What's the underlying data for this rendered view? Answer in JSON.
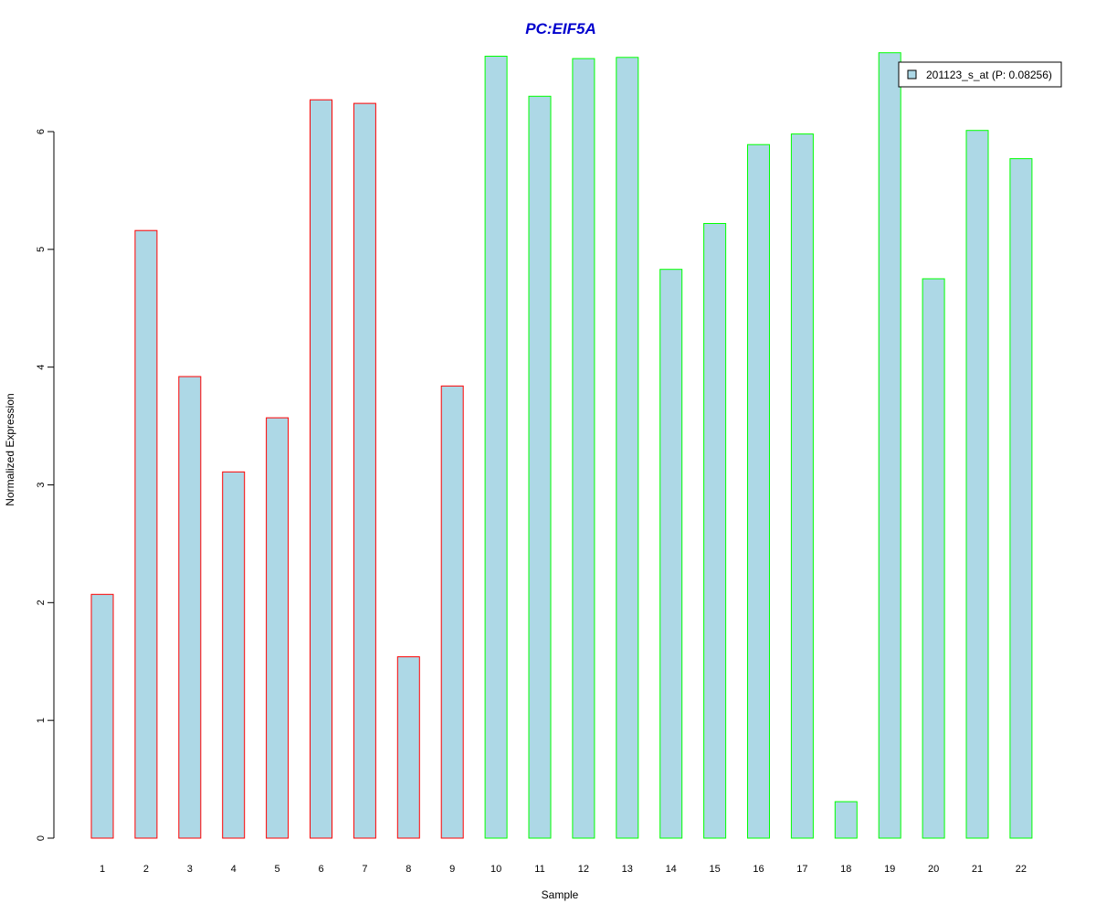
{
  "chart_data": {
    "type": "bar",
    "title": "PC:EIF5A",
    "xlabel": "Sample",
    "ylabel": "Normalized Expression",
    "categories": [
      "1",
      "2",
      "3",
      "4",
      "5",
      "6",
      "7",
      "8",
      "9",
      "10",
      "11",
      "12",
      "13",
      "14",
      "15",
      "16",
      "17",
      "18",
      "19",
      "20",
      "21",
      "22"
    ],
    "series": [
      {
        "name": "201123_s_at (P: 0.08256)",
        "values": [
          2.07,
          5.16,
          3.92,
          3.11,
          3.57,
          6.27,
          6.24,
          1.54,
          3.84,
          6.64,
          6.3,
          6.62,
          6.63,
          4.83,
          5.22,
          5.89,
          5.98,
          0.31,
          6.67,
          4.75,
          6.01,
          5.77
        ]
      }
    ],
    "groups": [
      1,
      1,
      1,
      1,
      1,
      1,
      1,
      1,
      1,
      2,
      2,
      2,
      2,
      2,
      2,
      2,
      2,
      2,
      2,
      2,
      2,
      2
    ],
    "ylim": [
      0,
      6.7
    ],
    "yticks": [
      "0",
      "1",
      "2",
      "3",
      "4",
      "5",
      "6"
    ],
    "grid": false,
    "legend_position": "top-right",
    "colors": {
      "title": "#0000cd",
      "bar_fill": "#add8e6",
      "group1_border": "#ff0000",
      "group2_border": "#00ff00",
      "axis": "#000000"
    }
  }
}
